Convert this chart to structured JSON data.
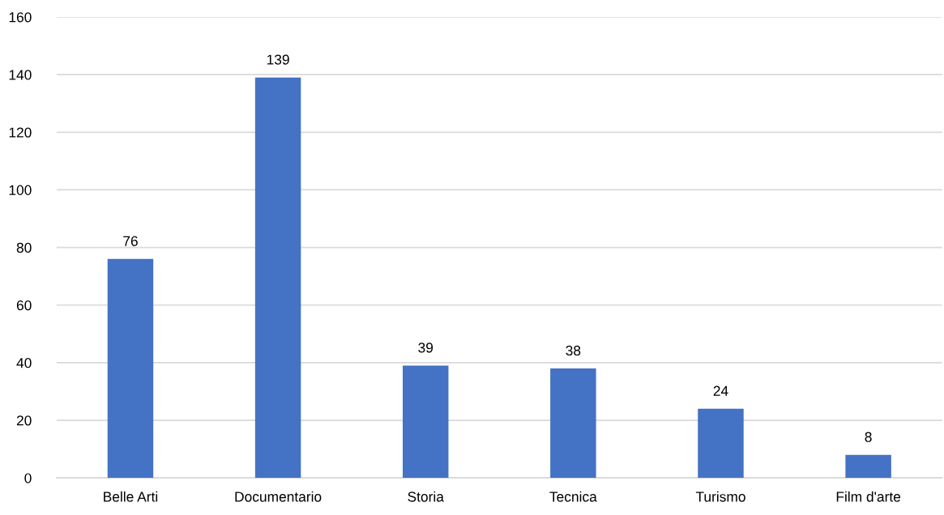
{
  "chart_data": {
    "type": "bar",
    "categories": [
      "Belle Arti",
      "Documentario",
      "Storia",
      "Tecnica",
      "Turismo",
      "Film d'arte"
    ],
    "values": [
      76,
      139,
      39,
      38,
      24,
      8
    ],
    "color": "#4472c4",
    "ylim": [
      0,
      160
    ],
    "yticks": [
      0,
      20,
      40,
      60,
      80,
      100,
      120,
      140,
      160
    ],
    "grid": "y",
    "data_labels": true
  }
}
